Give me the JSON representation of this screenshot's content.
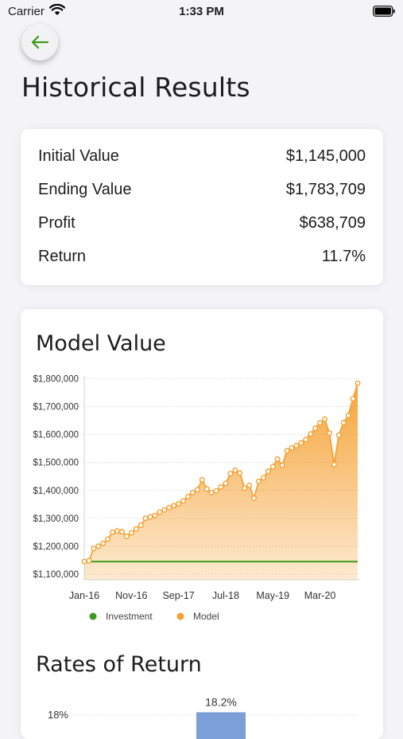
{
  "status_bar": {
    "carrier": "Carrier",
    "time": "1:33 PM"
  },
  "header": {
    "title": "Historical Results"
  },
  "summary": {
    "rows": [
      {
        "label": "Initial Value",
        "value": "$1,145,000"
      },
      {
        "label": "Ending Value",
        "value": "$1,783,709"
      },
      {
        "label": "Profit",
        "value": "$638,709"
      },
      {
        "label": "Return",
        "value": "11.7%"
      }
    ]
  },
  "model_chart": {
    "title": "Model Value",
    "colors": {
      "model": "#f5a030",
      "investment": "#3a9a1c",
      "returns_bar": "#7b9fd6"
    }
  },
  "returns_section": {
    "title": "Rates of Return"
  },
  "chart_data": [
    {
      "type": "area",
      "title": "Model Value",
      "x_tick_labels": [
        "Jan-16",
        "Nov-16",
        "Sep-17",
        "Jul-18",
        "May-19",
        "Mar-20"
      ],
      "y_tick_labels": [
        "$1,100,000",
        "$1,200,000",
        "$1,300,000",
        "$1,400,000",
        "$1,500,000",
        "$1,600,000",
        "$1,700,000",
        "$1,800,000"
      ],
      "ylim": [
        1080000,
        1810000
      ],
      "grid": true,
      "legend_placement": "bottom",
      "series": [
        {
          "name": "Investment",
          "kind": "line",
          "values": [
            1145000,
            1145000
          ]
        },
        {
          "name": "Model",
          "kind": "area",
          "values": [
            1145000,
            1148000,
            1192000,
            1200000,
            1210000,
            1225000,
            1250000,
            1255000,
            1252000,
            1235000,
            1248000,
            1262000,
            1275000,
            1300000,
            1305000,
            1310000,
            1322000,
            1330000,
            1338000,
            1345000,
            1352000,
            1362000,
            1378000,
            1392000,
            1402000,
            1438000,
            1405000,
            1392000,
            1398000,
            1412000,
            1425000,
            1460000,
            1472000,
            1462000,
            1408000,
            1418000,
            1372000,
            1432000,
            1445000,
            1468000,
            1485000,
            1512000,
            1490000,
            1542000,
            1552000,
            1560000,
            1570000,
            1582000,
            1602000,
            1622000,
            1642000,
            1655000,
            1605000,
            1492000,
            1598000,
            1642000,
            1668000,
            1728000,
            1783709
          ]
        }
      ]
    },
    {
      "type": "bar",
      "title": "Rates of Return",
      "y_tick_labels": [
        "18%"
      ],
      "data_labels": [
        "18.2%"
      ],
      "values": [
        18.2
      ]
    }
  ]
}
